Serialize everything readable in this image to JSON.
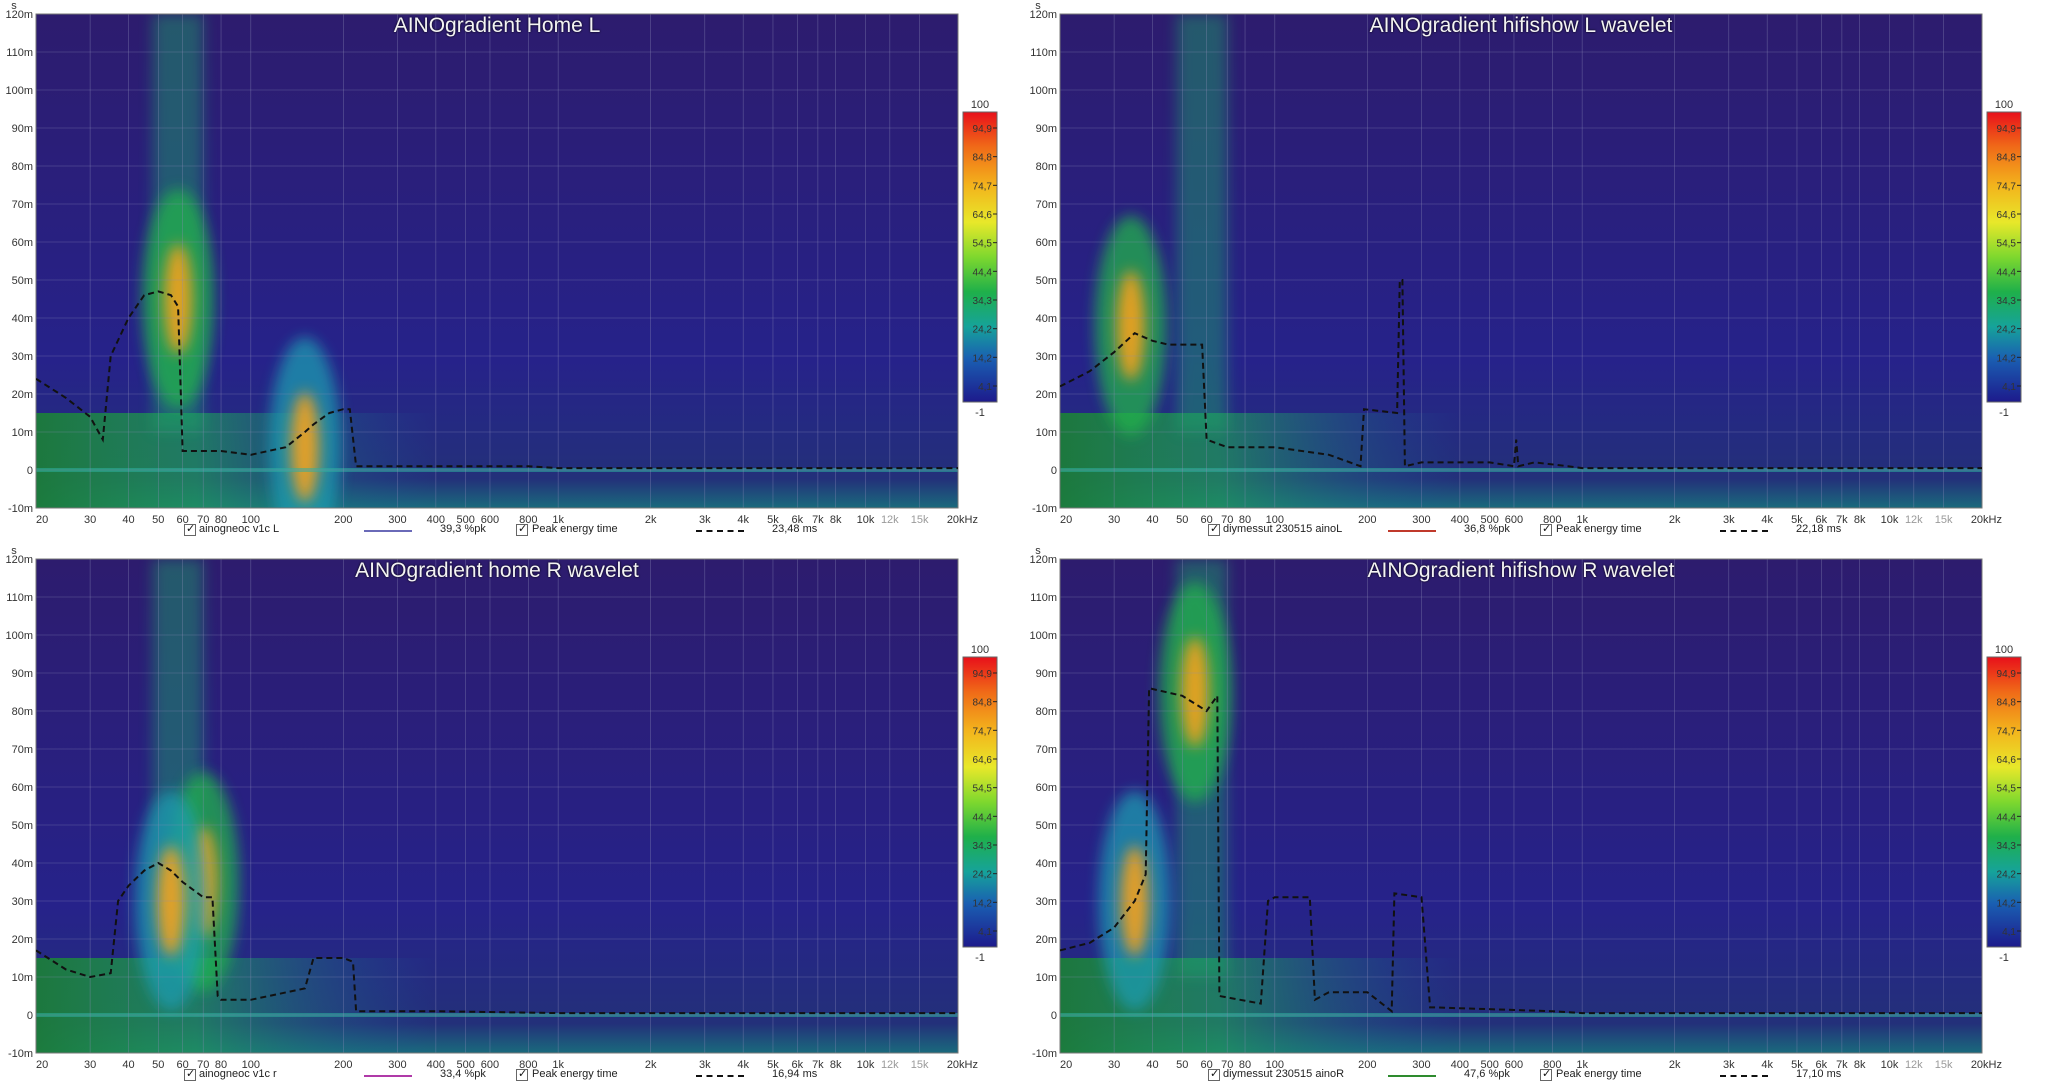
{
  "chart_data": [
    {
      "type": "heatmap",
      "title": "AINOgradient Home L",
      "ylabel": "s",
      "ylim": [
        -10,
        120
      ],
      "xlim": [
        20,
        20000
      ],
      "x_scale": "log",
      "y_ticks": [
        "120m",
        "110m",
        "100m",
        "90m",
        "80m",
        "70m",
        "60m",
        "50m",
        "40m",
        "30m",
        "20m",
        "10m",
        "0",
        "-10m"
      ],
      "x_ticks": [
        "20",
        "30",
        "40",
        "50",
        "60",
        "70",
        "80",
        "100",
        "200",
        "300",
        "400",
        "500",
        "600",
        "800",
        "1k",
        "2k",
        "3k",
        "4k",
        "5k",
        "6k",
        "7k",
        "8k",
        "10k",
        "12k",
        "15k",
        "20kHz"
      ],
      "colorbar": {
        "max_label": "100",
        "min_label": "-1",
        "labels": [
          "94,9",
          "84,8",
          "74,7",
          "64,6",
          "54,5",
          "44,4",
          "34,3",
          "24,2",
          "14,2",
          "4,1"
        ]
      },
      "legend": {
        "series_name": "ainogneoc v1c L",
        "series_color": "#6a6ab8",
        "series_value": "39,3 %pk",
        "peak_label": "Peak energy time",
        "peak_value": "23,48 ms"
      },
      "peak_energy_time_ms": {
        "x": [
          20,
          25,
          30,
          33,
          35,
          40,
          45,
          50,
          55,
          58,
          60,
          65,
          80,
          100,
          130,
          150,
          160,
          180,
          200,
          210,
          220,
          300,
          500,
          800,
          1000,
          2000,
          20000
        ],
        "y": [
          24,
          19,
          14,
          8,
          30,
          40,
          46,
          47,
          46,
          43,
          5,
          5,
          5,
          4,
          6,
          10,
          12,
          15,
          16,
          16,
          1,
          1,
          1,
          1,
          0.5,
          0.5,
          0.5
        ]
      },
      "energy_ridges": [
        {
          "freq": 58,
          "time_ms": 45,
          "level": 94.9
        },
        {
          "freq": 150,
          "time_ms": 6,
          "level": 84.8
        }
      ]
    },
    {
      "type": "heatmap",
      "title": "AINOgradient hifishow L wavelet",
      "ylabel": "s",
      "ylim": [
        -10,
        120
      ],
      "xlim": [
        20,
        20000
      ],
      "x_scale": "log",
      "y_ticks": [
        "120m",
        "110m",
        "100m",
        "90m",
        "80m",
        "70m",
        "60m",
        "50m",
        "40m",
        "30m",
        "20m",
        "10m",
        "0",
        "-10m"
      ],
      "x_ticks": [
        "20",
        "30",
        "40",
        "50",
        "60",
        "70",
        "80",
        "100",
        "200",
        "300",
        "400",
        "500",
        "600",
        "800",
        "1k",
        "2k",
        "3k",
        "4k",
        "5k",
        "6k",
        "7k",
        "8k",
        "10k",
        "12k",
        "15k",
        "20kHz"
      ],
      "colorbar": {
        "max_label": "100",
        "min_label": "-1",
        "labels": [
          "94,9",
          "84,8",
          "74,7",
          "64,6",
          "54,5",
          "44,4",
          "34,3",
          "24,2",
          "14,2",
          "4,1"
        ]
      },
      "legend": {
        "series_name": "diymessut 230515 ainoL",
        "series_color": "#c0392b",
        "series_value": "36,8 %pk",
        "peak_label": "Peak energy time",
        "peak_value": "22,18 ms"
      },
      "peak_energy_time_ms": {
        "x": [
          20,
          25,
          30,
          35,
          40,
          45,
          50,
          55,
          58,
          60,
          70,
          100,
          150,
          190,
          195,
          250,
          255,
          260,
          265,
          300,
          500,
          600,
          610,
          620,
          700,
          900,
          1000,
          2000,
          20000
        ],
        "y": [
          22,
          26,
          31,
          36,
          34,
          33,
          33,
          33,
          33,
          8,
          6,
          6,
          4,
          1,
          16,
          15,
          50,
          50,
          1,
          2,
          2,
          1,
          8,
          1,
          2,
          1,
          0.5,
          0.5,
          0.5
        ]
      },
      "energy_ridges": [
        {
          "freq": 34,
          "time_ms": 38,
          "level": 94.9
        }
      ]
    },
    {
      "type": "heatmap",
      "title": "AINOgradient home R wavelet",
      "ylabel": "s",
      "ylim": [
        -10,
        120
      ],
      "xlim": [
        20,
        20000
      ],
      "x_scale": "log",
      "y_ticks": [
        "120m",
        "110m",
        "100m",
        "90m",
        "80m",
        "70m",
        "60m",
        "50m",
        "40m",
        "30m",
        "20m",
        "10m",
        "0",
        "-10m"
      ],
      "x_ticks": [
        "20",
        "30",
        "40",
        "50",
        "60",
        "70",
        "80",
        "100",
        "200",
        "300",
        "400",
        "500",
        "600",
        "800",
        "1k",
        "2k",
        "3k",
        "4k",
        "5k",
        "6k",
        "7k",
        "8k",
        "10k",
        "12k",
        "15k",
        "20kHz"
      ],
      "colorbar": {
        "max_label": "100",
        "min_label": "-1",
        "labels": [
          "94,9",
          "84,8",
          "74,7",
          "64,6",
          "54,5",
          "44,4",
          "34,3",
          "24,2",
          "14,2",
          "4,1"
        ]
      },
      "legend": {
        "series_name": "ainogneoc v1c r",
        "series_color": "#b03aa8",
        "series_value": "33,4 %pk",
        "peak_label": "Peak energy time",
        "peak_value": "16,94 ms"
      },
      "peak_energy_time_ms": {
        "x": [
          20,
          25,
          30,
          35,
          37,
          40,
          45,
          50,
          55,
          60,
          70,
          75,
          78,
          80,
          100,
          150,
          160,
          170,
          200,
          215,
          220,
          400,
          1000,
          2000,
          20000
        ],
        "y": [
          17,
          12,
          10,
          11,
          30,
          34,
          38,
          40,
          38,
          35,
          31,
          31,
          5,
          4,
          4,
          7,
          15,
          15,
          15,
          14,
          1,
          1,
          0.5,
          0.5,
          0.5
        ]
      },
      "energy_ridges": [
        {
          "freq": 70,
          "time_ms": 35,
          "level": 94.9
        },
        {
          "freq": 55,
          "time_ms": 30,
          "level": 84.8
        }
      ]
    },
    {
      "type": "heatmap",
      "title": "AINOgradient hifishow R wavelet",
      "ylabel": "s",
      "ylim": [
        -10,
        120
      ],
      "xlim": [
        20,
        20000
      ],
      "x_scale": "log",
      "y_ticks": [
        "120m",
        "110m",
        "100m",
        "90m",
        "80m",
        "70m",
        "60m",
        "50m",
        "40m",
        "30m",
        "20m",
        "10m",
        "0",
        "-10m"
      ],
      "x_ticks": [
        "20",
        "30",
        "40",
        "50",
        "60",
        "70",
        "80",
        "100",
        "200",
        "300",
        "400",
        "500",
        "600",
        "800",
        "1k",
        "2k",
        "3k",
        "4k",
        "5k",
        "6k",
        "7k",
        "8k",
        "10k",
        "12k",
        "15k",
        "20kHz"
      ],
      "colorbar": {
        "max_label": "100",
        "min_label": "-1",
        "labels": [
          "94,9",
          "84,8",
          "74,7",
          "64,6",
          "54,5",
          "44,4",
          "34,3",
          "24,2",
          "14,2",
          "4,1"
        ]
      },
      "legend": {
        "series_name": "diymessut 230515 ainoR",
        "series_color": "#2e8b2e",
        "series_value": "47,6 %pk",
        "peak_label": "Peak energy time",
        "peak_value": "17,10 ms"
      },
      "peak_energy_time_ms": {
        "x": [
          20,
          25,
          30,
          35,
          38,
          39,
          50,
          60,
          65,
          66,
          90,
          95,
          100,
          130,
          135,
          150,
          200,
          240,
          245,
          300,
          320,
          330,
          800,
          1000,
          2000,
          20000
        ],
        "y": [
          17,
          19,
          23,
          30,
          37,
          86,
          84,
          80,
          84,
          5,
          3,
          30,
          31,
          31,
          4,
          6,
          6,
          1,
          32,
          31,
          2,
          2,
          1,
          0.5,
          0.5,
          0.5
        ]
      },
      "energy_ridges": [
        {
          "freq": 55,
          "time_ms": 85,
          "level": 94.9
        },
        {
          "freq": 35,
          "time_ms": 30,
          "level": 84.8
        }
      ]
    }
  ]
}
